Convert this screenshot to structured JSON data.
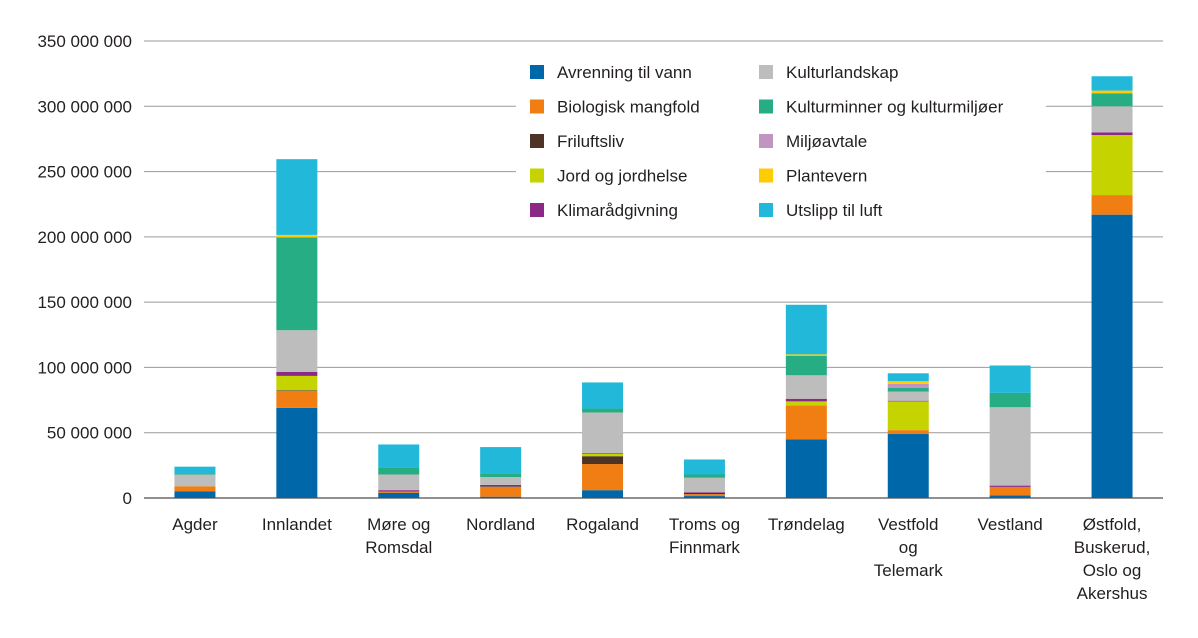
{
  "chart_data": {
    "type": "bar",
    "stacked": true,
    "grid": true,
    "legend_position": "top-right",
    "ylim": [
      0,
      350000000
    ],
    "y_ticks": [
      0,
      50000000,
      100000000,
      150000000,
      200000000,
      250000000,
      300000000,
      350000000
    ],
    "y_tick_labels": [
      "0",
      "50 000 000",
      "100 000 000",
      "150 000 000",
      "200 000 000",
      "250 000 000",
      "300 000 000",
      "350 000 000"
    ],
    "categories": [
      [
        "Agder"
      ],
      [
        "Innlandet"
      ],
      [
        "Møre og",
        "Romsdal"
      ],
      [
        "Nordland"
      ],
      [
        "Rogaland"
      ],
      [
        "Troms og",
        "Finnmark"
      ],
      [
        "Trøndelag"
      ],
      [
        "Vestfold",
        "og",
        "Telemark"
      ],
      [
        "Vestland"
      ],
      [
        "Østfold,",
        "Buskerud,",
        "Oslo og",
        "Akershus"
      ]
    ],
    "series": [
      {
        "name": "Avrenning til vann",
        "color": "#0068a8",
        "values": [
          5000000,
          69000000,
          4000000,
          1000000,
          6000000,
          1500000,
          45000000,
          49000000,
          2000000,
          217000000
        ]
      },
      {
        "name": "Biologisk mangfold",
        "color": "#f07e13",
        "values": [
          4000000,
          13000000,
          1000000,
          7500000,
          20000000,
          1500000,
          26000000,
          3000000,
          6500000,
          15000000
        ]
      },
      {
        "name": "Friluftsliv",
        "color": "#4d3427",
        "values": [
          0,
          500000,
          0,
          500000,
          6000000,
          1000000,
          0,
          0,
          0,
          0
        ]
      },
      {
        "name": "Jord og jordhelse",
        "color": "#c5d300",
        "values": [
          0,
          11000000,
          0,
          0,
          2000000,
          0,
          3000000,
          22000000,
          0,
          46000000
        ]
      },
      {
        "name": "Klimarådgivning",
        "color": "#8b2a86",
        "values": [
          0,
          3000000,
          1000000,
          1000000,
          500000,
          500000,
          2000000,
          500000,
          1000000,
          2000000
        ]
      },
      {
        "name": "Kulturlandskap",
        "color": "#bdbdbd",
        "values": [
          9000000,
          32000000,
          12000000,
          6000000,
          31000000,
          11000000,
          18000000,
          7000000,
          60000000,
          20000000
        ]
      },
      {
        "name": "Kulturminner og kulturmiljøer",
        "color": "#27ad84",
        "values": [
          1000000,
          71000000,
          5000000,
          3000000,
          3000000,
          2500000,
          15000000,
          3000000,
          11000000,
          10000000
        ]
      },
      {
        "name": "Miljøavtale",
        "color": "#c294c2",
        "values": [
          0,
          0,
          0,
          0,
          0,
          0,
          0,
          3000000,
          0,
          0
        ]
      },
      {
        "name": "Plantevern",
        "color": "#ffcc00",
        "values": [
          0,
          2000000,
          0,
          0,
          0,
          0,
          1000000,
          2000000,
          0,
          2000000
        ]
      },
      {
        "name": "Utslipp til luft",
        "color": "#22b8d9",
        "values": [
          5000000,
          58000000,
          18000000,
          20000000,
          20000000,
          11500000,
          38000000,
          6000000,
          21000000,
          11000000
        ]
      }
    ]
  }
}
